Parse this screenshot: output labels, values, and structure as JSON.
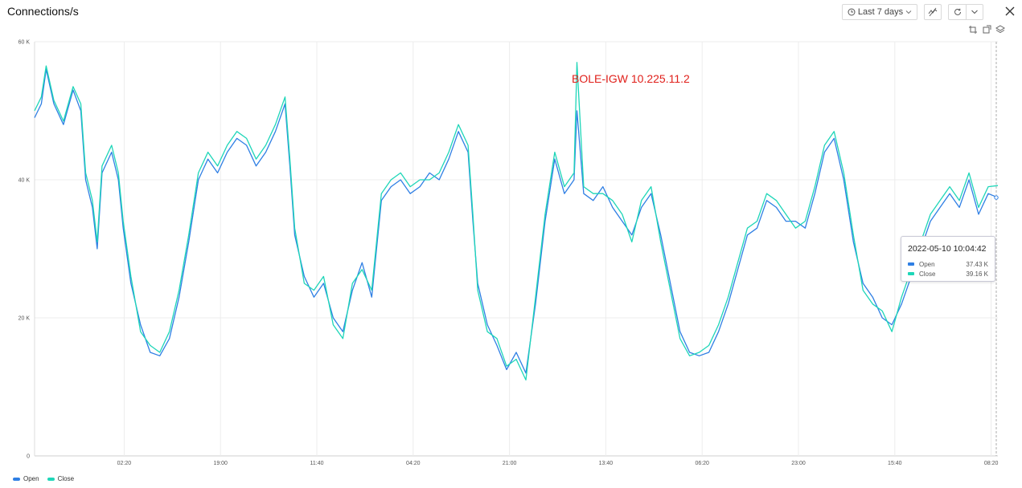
{
  "panel": {
    "title": "Connections/s"
  },
  "toolbar": {
    "time_range": "Last 7 days"
  },
  "colors": {
    "open": "#2f7fe4",
    "close": "#1ed6b8",
    "grid": "#ececec",
    "annotation": "#e0201b"
  },
  "tooltip": {
    "title": "2022-05-10 10:04:42",
    "rows": [
      {
        "name": "Open",
        "value": "37.43 K"
      },
      {
        "name": "Close",
        "value": "39.16 K"
      }
    ]
  },
  "chart_data": {
    "type": "line",
    "annotation": "BOLE-IGW 10.225.11.2",
    "ylim": [
      0,
      60000
    ],
    "y_ticks": [
      "0",
      "20 K",
      "40 K",
      "60 K"
    ],
    "x_ticks": [
      "02:20",
      "19:00",
      "11:40",
      "04:20",
      "21:00",
      "13:40",
      "06:20",
      "23:00",
      "15:40",
      "08:20"
    ],
    "legend": [
      "Open",
      "Close"
    ],
    "legend_position": "bottom-left",
    "grid": true,
    "x_index_range": [
      0,
      100
    ],
    "series": [
      {
        "name": "Open",
        "points": [
          [
            0,
            49000
          ],
          [
            0.7,
            51000
          ],
          [
            1.2,
            56000
          ],
          [
            2,
            51000
          ],
          [
            3,
            48000
          ],
          [
            4,
            53000
          ],
          [
            4.8,
            50000
          ],
          [
            5.3,
            40000
          ],
          [
            6,
            36000
          ],
          [
            6.5,
            30000
          ],
          [
            7,
            41000
          ],
          [
            8,
            44000
          ],
          [
            8.7,
            40000
          ],
          [
            9.2,
            33000
          ],
          [
            10,
            25000
          ],
          [
            11,
            19000
          ],
          [
            12,
            15000
          ],
          [
            13,
            14500
          ],
          [
            14,
            17000
          ],
          [
            15,
            23000
          ],
          [
            16,
            31000
          ],
          [
            17,
            40000
          ],
          [
            18,
            43000
          ],
          [
            19,
            41000
          ],
          [
            20,
            44000
          ],
          [
            21,
            46000
          ],
          [
            22,
            45000
          ],
          [
            23,
            42000
          ],
          [
            24,
            44000
          ],
          [
            25,
            47000
          ],
          [
            26,
            51000
          ],
          [
            26.5,
            42000
          ],
          [
            27,
            32000
          ],
          [
            28,
            26000
          ],
          [
            29,
            23000
          ],
          [
            30,
            25000
          ],
          [
            31,
            20000
          ],
          [
            32,
            18000
          ],
          [
            33,
            24000
          ],
          [
            34,
            28000
          ],
          [
            35,
            23000
          ],
          [
            36,
            37000
          ],
          [
            37,
            39000
          ],
          [
            38,
            40000
          ],
          [
            39,
            38000
          ],
          [
            40,
            39000
          ],
          [
            41,
            41000
          ],
          [
            42,
            40000
          ],
          [
            43,
            43000
          ],
          [
            44,
            47000
          ],
          [
            45,
            44000
          ],
          [
            45.5,
            34000
          ],
          [
            46,
            25000
          ],
          [
            47,
            19000
          ],
          [
            48,
            16000
          ],
          [
            49,
            12500
          ],
          [
            50,
            15000
          ],
          [
            51,
            12000
          ],
          [
            52,
            22000
          ],
          [
            53,
            34000
          ],
          [
            54,
            43000
          ],
          [
            55,
            38000
          ],
          [
            56,
            40000
          ],
          [
            56.3,
            50000
          ],
          [
            57,
            38000
          ],
          [
            58,
            37000
          ],
          [
            59,
            39000
          ],
          [
            60,
            36000
          ],
          [
            61,
            34000
          ],
          [
            62,
            32000
          ],
          [
            63,
            36000
          ],
          [
            64,
            38000
          ],
          [
            65,
            32000
          ],
          [
            66,
            25000
          ],
          [
            67,
            18000
          ],
          [
            68,
            15000
          ],
          [
            69,
            14500
          ],
          [
            70,
            15000
          ],
          [
            71,
            18000
          ],
          [
            72,
            22000
          ],
          [
            73,
            27000
          ],
          [
            74,
            32000
          ],
          [
            75,
            33000
          ],
          [
            76,
            37000
          ],
          [
            77,
            36000
          ],
          [
            78,
            34000
          ],
          [
            79,
            34000
          ],
          [
            80,
            33000
          ],
          [
            81,
            38000
          ],
          [
            82,
            44000
          ],
          [
            83,
            46000
          ],
          [
            84,
            40000
          ],
          [
            85,
            31000
          ],
          [
            86,
            25000
          ],
          [
            87,
            23000
          ],
          [
            88,
            20000
          ],
          [
            89,
            19000
          ],
          [
            90,
            22000
          ],
          [
            91,
            26000
          ],
          [
            92,
            30000
          ],
          [
            93,
            34000
          ],
          [
            94,
            36000
          ],
          [
            95,
            38000
          ],
          [
            96,
            36000
          ],
          [
            97,
            40000
          ],
          [
            98,
            35000
          ],
          [
            99,
            38000
          ],
          [
            100,
            37430
          ]
        ]
      },
      {
        "name": "Close",
        "points": [
          [
            0,
            50000
          ],
          [
            0.7,
            52000
          ],
          [
            1.2,
            56500
          ],
          [
            2,
            51500
          ],
          [
            3,
            48500
          ],
          [
            4,
            53500
          ],
          [
            4.8,
            51000
          ],
          [
            5.3,
            41000
          ],
          [
            6,
            37000
          ],
          [
            6.5,
            31000
          ],
          [
            7,
            42000
          ],
          [
            8,
            45000
          ],
          [
            8.7,
            41000
          ],
          [
            9.2,
            34000
          ],
          [
            10,
            26000
          ],
          [
            11,
            18000
          ],
          [
            12,
            16000
          ],
          [
            13,
            15000
          ],
          [
            14,
            18000
          ],
          [
            15,
            24000
          ],
          [
            16,
            32000
          ],
          [
            17,
            41000
          ],
          [
            18,
            44000
          ],
          [
            19,
            42000
          ],
          [
            20,
            45000
          ],
          [
            21,
            47000
          ],
          [
            22,
            46000
          ],
          [
            23,
            43000
          ],
          [
            24,
            45000
          ],
          [
            25,
            48000
          ],
          [
            26,
            52000
          ],
          [
            26.5,
            43000
          ],
          [
            27,
            33000
          ],
          [
            28,
            25000
          ],
          [
            29,
            24000
          ],
          [
            30,
            26000
          ],
          [
            31,
            19000
          ],
          [
            32,
            17000
          ],
          [
            33,
            25000
          ],
          [
            34,
            27000
          ],
          [
            35,
            24000
          ],
          [
            36,
            38000
          ],
          [
            37,
            40000
          ],
          [
            38,
            41000
          ],
          [
            39,
            39000
          ],
          [
            40,
            40000
          ],
          [
            41,
            40000
          ],
          [
            42,
            41000
          ],
          [
            43,
            44000
          ],
          [
            44,
            48000
          ],
          [
            45,
            45000
          ],
          [
            45.5,
            35000
          ],
          [
            46,
            24000
          ],
          [
            47,
            18000
          ],
          [
            48,
            17000
          ],
          [
            49,
            13000
          ],
          [
            50,
            14000
          ],
          [
            51,
            11000
          ],
          [
            52,
            23000
          ],
          [
            53,
            35000
          ],
          [
            54,
            44000
          ],
          [
            55,
            39000
          ],
          [
            56,
            41000
          ],
          [
            56.3,
            57000
          ],
          [
            57,
            39000
          ],
          [
            58,
            38000
          ],
          [
            59,
            38000
          ],
          [
            60,
            37000
          ],
          [
            61,
            35000
          ],
          [
            62,
            31000
          ],
          [
            63,
            37000
          ],
          [
            64,
            39000
          ],
          [
            65,
            31000
          ],
          [
            66,
            24000
          ],
          [
            67,
            17000
          ],
          [
            68,
            14500
          ],
          [
            69,
            15000
          ],
          [
            70,
            16000
          ],
          [
            71,
            19000
          ],
          [
            72,
            23000
          ],
          [
            73,
            28000
          ],
          [
            74,
            33000
          ],
          [
            75,
            34000
          ],
          [
            76,
            38000
          ],
          [
            77,
            37000
          ],
          [
            78,
            35000
          ],
          [
            79,
            33000
          ],
          [
            80,
            34000
          ],
          [
            81,
            39000
          ],
          [
            82,
            45000
          ],
          [
            83,
            47000
          ],
          [
            84,
            41000
          ],
          [
            85,
            32000
          ],
          [
            86,
            24000
          ],
          [
            87,
            22000
          ],
          [
            88,
            21000
          ],
          [
            89,
            18000
          ],
          [
            90,
            23000
          ],
          [
            91,
            27000
          ],
          [
            92,
            31000
          ],
          [
            93,
            35000
          ],
          [
            94,
            37000
          ],
          [
            95,
            39000
          ],
          [
            96,
            37000
          ],
          [
            97,
            41000
          ],
          [
            98,
            36000
          ],
          [
            99,
            39000
          ],
          [
            100,
            39160
          ]
        ]
      }
    ]
  }
}
